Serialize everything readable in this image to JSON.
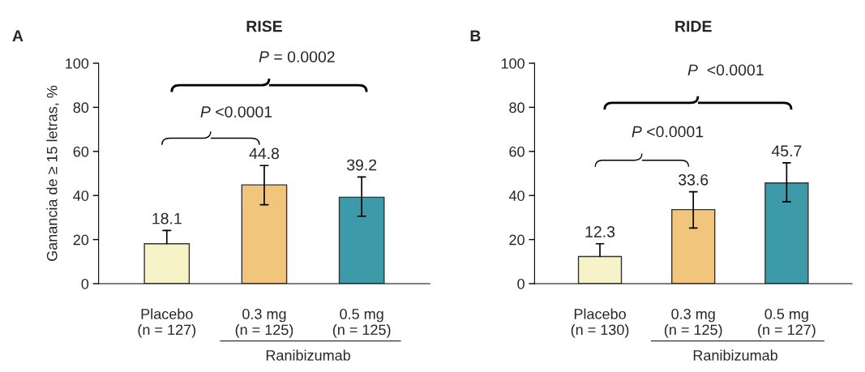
{
  "chart_data": [
    {
      "type": "bar",
      "title": "RISE",
      "ylabel": "Ganancia de ≥ 15 letras, %",
      "categories": [
        "Placebo\n(n = 127)",
        "0.3 mg\n(n = 125)",
        "0.5 mg\n(n = 125)"
      ],
      "values": [
        18.1,
        44.8,
        39.2
      ],
      "colors": [
        "#f7f2c8",
        "#f2c57c",
        "#3d9aa8"
      ],
      "errors": [
        [
          18.1,
          24.1
        ],
        [
          35.8,
          53.6
        ],
        [
          30.6,
          48.4
        ]
      ],
      "data_labels": true,
      "ylim": [
        0,
        100
      ],
      "yticks": [
        0,
        20,
        40,
        60,
        80,
        100
      ],
      "grid": false,
      "legend": false,
      "annotations": [
        "A",
        "P <0.0001",
        "P = 0.0002",
        "Ranibizumab"
      ]
    },
    {
      "type": "bar",
      "title": "RIDE",
      "categories": [
        "Placebo\n(n = 130)",
        "0.3 mg\n(n = 125)",
        "0.5 mg\n(n = 127)"
      ],
      "values": [
        12.3,
        33.6,
        45.7
      ],
      "colors": [
        "#f7f2c8",
        "#f2c57c",
        "#3d9aa8"
      ],
      "errors": [
        [
          12.3,
          18.1
        ],
        [
          25.2,
          41.7
        ],
        [
          37.2,
          54.8
        ]
      ],
      "data_labels": true,
      "ylim": [
        0,
        100
      ],
      "yticks": [
        0,
        20,
        40,
        60,
        80,
        100
      ],
      "grid": false,
      "legend": false,
      "annotations": [
        "B",
        "P <0.0001",
        "P  <0.0001",
        "Ranibizumab"
      ]
    }
  ]
}
